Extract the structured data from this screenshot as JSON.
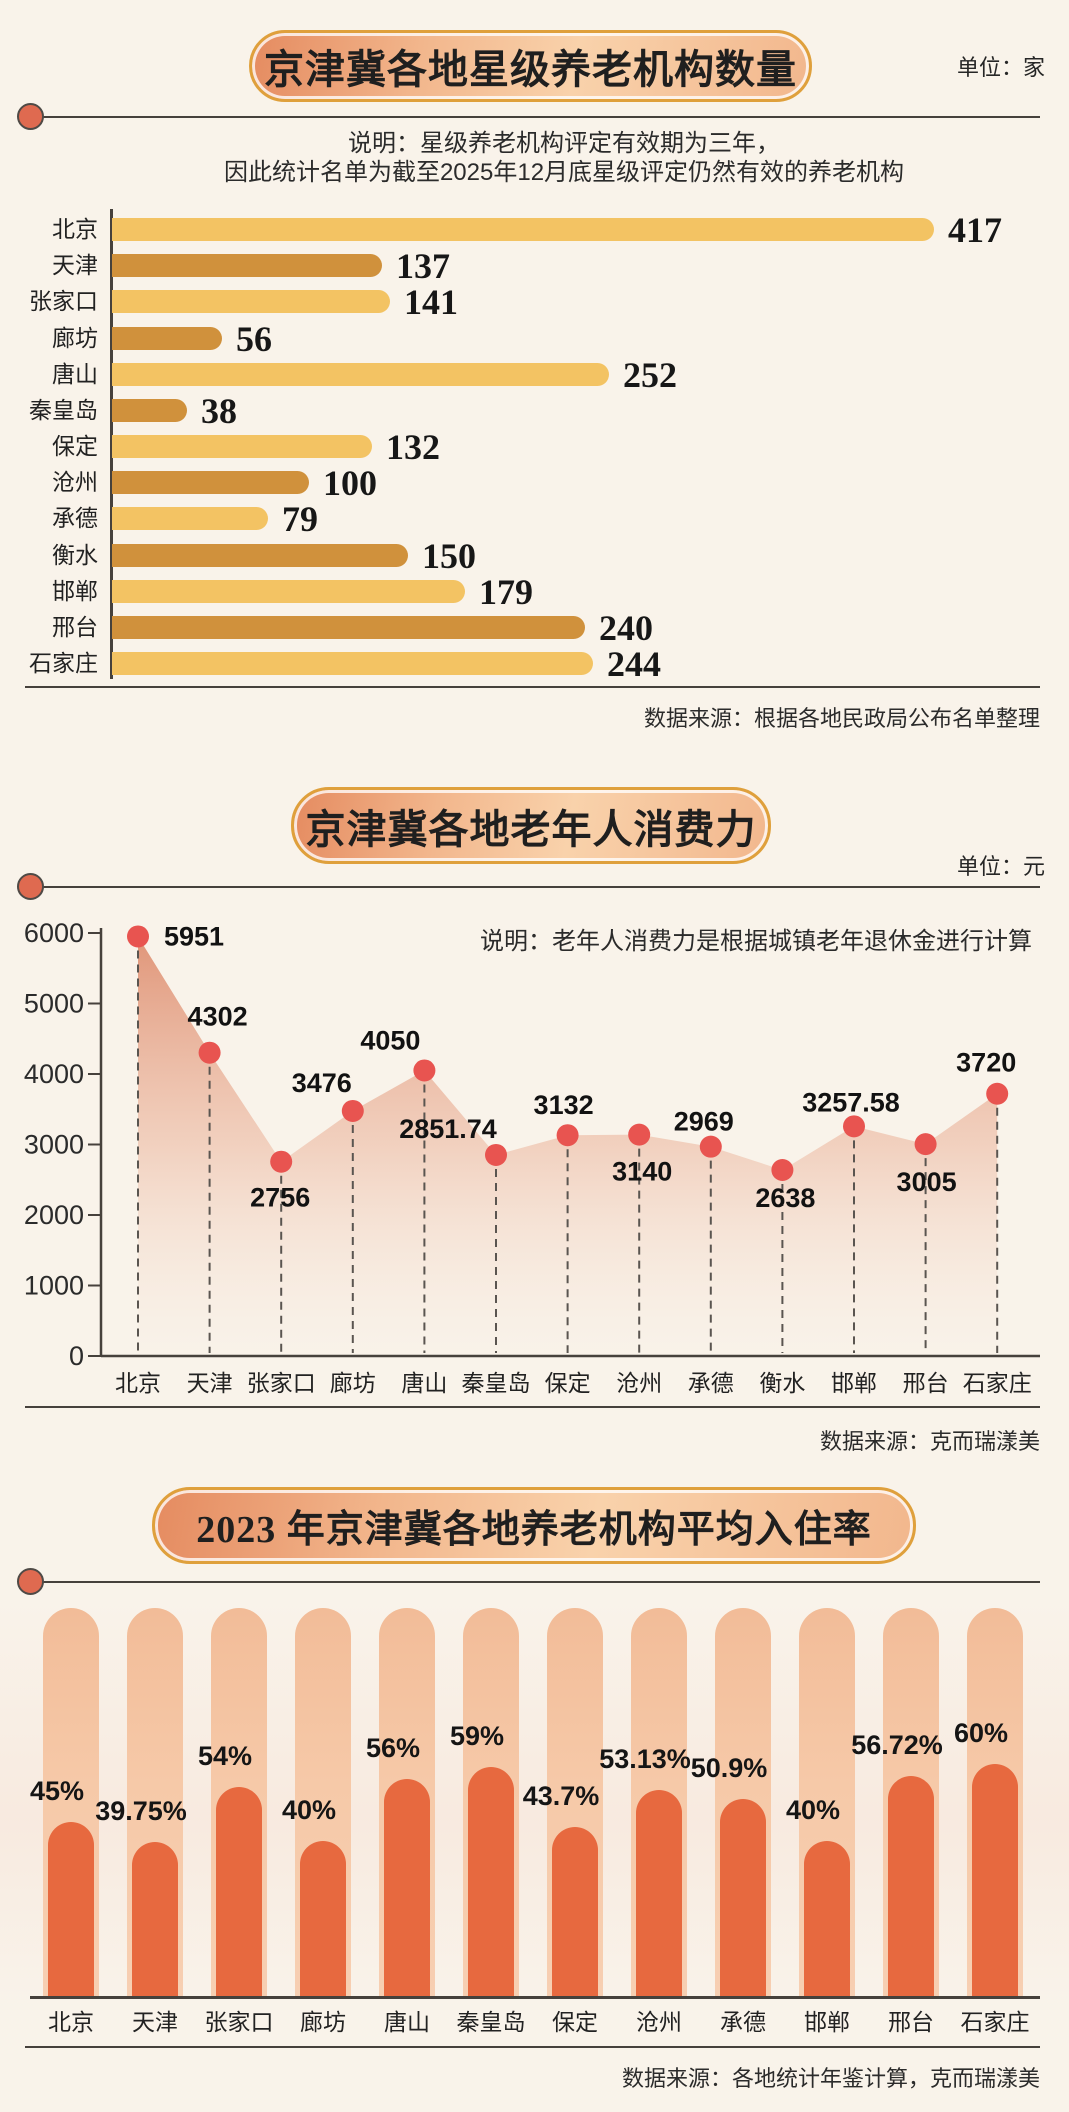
{
  "page": {
    "background": "#F9F3EA",
    "rule_color": "#46413C",
    "divider_dot_color": "#DF6A50",
    "badge_border_color": "#DFA03C"
  },
  "chart_data": [
    {
      "type": "bar",
      "orientation": "horizontal",
      "title": "京津冀各地星级养老机构数量",
      "unit": "单位：家",
      "note_line1": "说明：星级养老机构评定有效期为三年，",
      "note_line2": "因此统计名单为截至2025年12月底星级评定仍然有效的养老机构",
      "source": "数据来源：根据各地民政局公布名单整理",
      "categories": [
        "北京",
        "天津",
        "张家口",
        "廊坊",
        "唐山",
        "秦皇岛",
        "保定",
        "沧州",
        "承德",
        "衡水",
        "邯郸",
        "邢台",
        "石家庄"
      ],
      "values": [
        417,
        137,
        141,
        56,
        252,
        38,
        132,
        100,
        79,
        150,
        179,
        240,
        244
      ],
      "xlim": [
        0,
        470
      ],
      "grid": false,
      "bar_color_light": "#F3C363",
      "bar_color_dark": "#D0913C"
    },
    {
      "type": "area",
      "title": "京津冀各地老年人消费力",
      "unit": "单位：元",
      "note": "说明：老年人消费力是根据城镇老年退休金进行计算",
      "source": "数据来源：克而瑞漾美",
      "categories": [
        "北京",
        "天津",
        "张家口",
        "廊坊",
        "唐山",
        "秦皇岛",
        "保定",
        "沧州",
        "承德",
        "衡水",
        "邯郸",
        "邢台",
        "石家庄"
      ],
      "values": [
        5951,
        4302,
        2756,
        3476,
        4050,
        2851.74,
        3132,
        3140,
        2969,
        2638,
        3257.58,
        3005,
        3720
      ],
      "value_labels": [
        "5951",
        "4302",
        "2756",
        "3476",
        "4050",
        "2851.74",
        "3132",
        "3140",
        "2969",
        "2638",
        "3257.58",
        "3005",
        "3720"
      ],
      "ylim": [
        0,
        6000
      ],
      "yticks": [
        0,
        1000,
        2000,
        3000,
        4000,
        5000,
        6000
      ],
      "grid": false,
      "point_color": "#E85450",
      "area_top_color": "#DE8E70"
    },
    {
      "type": "bar",
      "orientation": "vertical",
      "title": "2023 年京津冀各地养老机构平均入住率",
      "source": "数据来源：各地统计年鉴计算，克而瑞漾美",
      "categories": [
        "北京",
        "天津",
        "张家口",
        "廊坊",
        "唐山",
        "秦皇岛",
        "保定",
        "沧州",
        "承德",
        "邯郸",
        "邢台",
        "石家庄"
      ],
      "values": [
        45,
        39.75,
        54,
        40,
        56,
        59,
        43.7,
        53.13,
        50.9,
        40,
        56.72,
        60
      ],
      "value_labels": [
        "45%",
        "39.75%",
        "54%",
        "40%",
        "56%",
        "59%",
        "43.7%",
        "53.13%",
        "50.9%",
        "40%",
        "56.72%",
        "60%"
      ],
      "ylim": [
        0,
        100
      ],
      "grid": false,
      "bar_color": "#E7693F",
      "track_color": "#F5C6A4"
    }
  ]
}
